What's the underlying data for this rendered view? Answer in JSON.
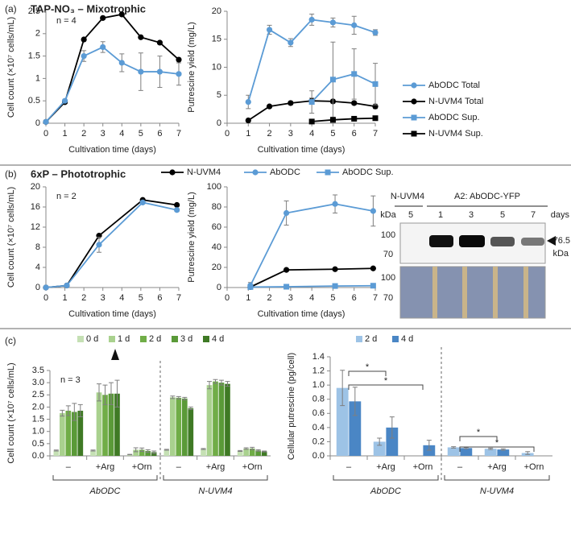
{
  "sections": [
    {
      "label": "(a)",
      "title": "TAP-NO₃ – Mixotrophic"
    },
    {
      "label": "(b)",
      "title": "6xP – Phototrophic"
    },
    {
      "label": "(c)"
    }
  ],
  "chart_data": [
    {
      "type": "line",
      "ylabel": "Cell count (×10⁷ cells/mL)",
      "xlabel": "Cultivation time (days)",
      "annotation": "n = 4",
      "xlim": [
        0,
        7
      ],
      "xticks": [
        0,
        1,
        2,
        3,
        4,
        5,
        6,
        7
      ],
      "ylim": [
        0,
        2.5
      ],
      "yticks": [
        0,
        0.5,
        1,
        1.5,
        2,
        2.5
      ],
      "series": [
        {
          "color": "#000000",
          "marker": "circle",
          "x": [
            0,
            1,
            2,
            3,
            4,
            5,
            6,
            7
          ],
          "values": [
            0.03,
            0.47,
            1.87,
            2.35,
            2.43,
            1.92,
            1.8,
            1.42
          ]
        },
        {
          "color": "#5b9bd5",
          "marker": "circle",
          "x": [
            0,
            1,
            2,
            3,
            4,
            5,
            6,
            7
          ],
          "values": [
            0.03,
            0.5,
            1.5,
            1.7,
            1.35,
            1.15,
            1.15,
            1.1
          ],
          "errors": [
            0,
            0.03,
            0.12,
            0.12,
            0.2,
            0.42,
            0.35,
            0.25
          ]
        }
      ]
    },
    {
      "type": "line",
      "ylabel": "Putrescine yield (mg/L)",
      "xlabel": "Cultivation time (days)",
      "legend": "right",
      "xlim": [
        0,
        7
      ],
      "xticks": [
        0,
        1,
        2,
        3,
        4,
        5,
        6,
        7
      ],
      "ylim": [
        0,
        20
      ],
      "yticks": [
        0,
        5,
        10,
        15,
        20
      ],
      "series": [
        {
          "name": "AbODC Total",
          "color": "#5b9bd5",
          "marker": "circle",
          "x": [
            1,
            2,
            3,
            4,
            5,
            6,
            7
          ],
          "values": [
            3.8,
            16.7,
            14.4,
            18.5,
            18.0,
            17.5,
            16.2
          ],
          "errors": [
            1.2,
            0.8,
            0.7,
            1.0,
            0.8,
            1.6,
            0.5
          ]
        },
        {
          "name": "N-UVM4 Total",
          "color": "#000000",
          "marker": "circle",
          "x": [
            1,
            2,
            3,
            4,
            5,
            6,
            7
          ],
          "values": [
            0.5,
            3.0,
            3.6,
            4.0,
            3.9,
            3.6,
            3.0
          ],
          "errors": [
            0.1,
            0.2,
            0.3,
            0.5,
            0.3,
            0.3,
            0.4
          ]
        },
        {
          "name": "AbODC Sup.",
          "color": "#5b9bd5",
          "marker": "square",
          "x": [
            4,
            5,
            6,
            7
          ],
          "values": [
            3.8,
            7.8,
            8.8,
            7.0
          ],
          "errors": [
            2.0,
            6.7,
            4.5,
            3.7
          ]
        },
        {
          "name": "N-UVM4 Sup.",
          "color": "#000000",
          "marker": "square",
          "x": [
            4,
            5,
            6,
            7
          ],
          "values": [
            0.3,
            0.6,
            0.8,
            0.9
          ]
        }
      ]
    },
    {
      "type": "line",
      "ylabel": "Cell count (×10⁷ cells/mL)",
      "xlabel": "Cultivation time (days)",
      "annotation": "n = 2",
      "xlim": [
        0,
        7
      ],
      "xticks": [
        0,
        1,
        2,
        3,
        4,
        5,
        6,
        7
      ],
      "ylim": [
        0,
        20
      ],
      "yticks": [
        0,
        4,
        8,
        12,
        16,
        20
      ],
      "series": [
        {
          "color": "#000000",
          "marker": "circle",
          "x": [
            0,
            1.1,
            2.8,
            5.1,
            6.9
          ],
          "values": [
            0,
            0.4,
            10.3,
            17.4,
            16.4
          ]
        },
        {
          "color": "#5b9bd5",
          "marker": "circle",
          "x": [
            0,
            1.1,
            2.8,
            5.1,
            6.9
          ],
          "values": [
            0,
            0.4,
            8.5,
            16.9,
            15.4
          ],
          "errors": [
            0,
            0.1,
            1.5,
            0.3,
            0.3
          ]
        }
      ]
    },
    {
      "type": "line",
      "ylabel": "Putrescine yield (mg/L)",
      "xlabel": "Cultivation time (days)",
      "legend": "top",
      "xlim": [
        0,
        7
      ],
      "xticks": [
        0,
        1,
        2,
        3,
        4,
        5,
        6,
        7
      ],
      "ylim": [
        0,
        100
      ],
      "yticks": [
        0,
        20,
        40,
        60,
        80,
        100
      ],
      "series": [
        {
          "name": "N-UVM4",
          "color": "#000000",
          "marker": "circle",
          "x": [
            1.1,
            2.8,
            5.1,
            6.9
          ],
          "values": [
            0.5,
            17.5,
            18.2,
            19.0
          ]
        },
        {
          "name": "AbODC",
          "color": "#5b9bd5",
          "marker": "circle",
          "x": [
            1.1,
            2.8,
            5.1,
            6.9
          ],
          "values": [
            2.0,
            74,
            83,
            76
          ],
          "errors": [
            3,
            12,
            9,
            15
          ]
        },
        {
          "name": "AbODC Sup.",
          "color": "#5b9bd5",
          "marker": "square",
          "x": [
            1.1,
            2.8,
            5.1,
            6.9
          ],
          "values": [
            0.5,
            0.8,
            1.5,
            1.8
          ]
        }
      ]
    },
    {
      "type": "bar",
      "ylabel": "Cell count (×10⁷ cells/mL)",
      "annotation": "n = 3",
      "legend": "top",
      "categories": [
        "–",
        "+Arg",
        "+Orn",
        "–",
        "+Arg",
        "+Orn"
      ],
      "groups": [
        "AbODC",
        "N-UVM4"
      ],
      "ylim": [
        0,
        3.5
      ],
      "yticks": [
        {
          "value": 0,
          "label": "0.0"
        },
        0.5,
        {
          "value": 1,
          "label": "1.0"
        },
        1.5,
        {
          "value": 2,
          "label": "2.0"
        },
        2.5,
        {
          "value": 3,
          "label": "3.0"
        },
        3.5
      ],
      "series": [
        {
          "name": "0 d",
          "color": "#c5e0b4",
          "values": [
            0.22,
            0.22,
            0.05,
            0.25,
            0.28,
            0.2
          ],
          "errors": [
            0.02,
            0.02,
            0.01,
            0.02,
            0.02,
            0.02
          ]
        },
        {
          "name": "1 d",
          "color": "#a9d18e",
          "values": [
            1.75,
            2.6,
            0.25,
            2.4,
            2.9,
            0.3
          ],
          "errors": [
            0.12,
            0.35,
            0.08,
            0.05,
            0.15,
            0.03
          ]
        },
        {
          "name": "2 d",
          "color": "#70ad47",
          "values": [
            1.85,
            2.5,
            0.25,
            2.38,
            3.05,
            0.3
          ],
          "errors": [
            0.2,
            0.4,
            0.07,
            0.05,
            0.08,
            0.05
          ]
        },
        {
          "name": "3 d",
          "color": "#5a9a38",
          "values": [
            1.8,
            2.55,
            0.2,
            2.35,
            3.0,
            0.22
          ],
          "errors": [
            0.35,
            0.45,
            0.05,
            0.05,
            0.1,
            0.03
          ]
        },
        {
          "name": "4 d",
          "color": "#3f7a25",
          "values": [
            1.85,
            2.55,
            0.15,
            1.95,
            2.95,
            0.18
          ],
          "errors": [
            0.25,
            0.55,
            0.05,
            0.05,
            0.1,
            0.02
          ]
        }
      ]
    },
    {
      "type": "bar",
      "ylabel": "Cellular putrescine (pg/cell)",
      "legend": "top",
      "categories": [
        "–",
        "+Arg",
        "+Orn",
        "–",
        "+Arg",
        "+Orn"
      ],
      "groups": [
        "AbODC",
        "N-UVM4"
      ],
      "ylim": [
        0,
        1.4
      ],
      "yticks": [
        {
          "value": 0,
          "label": "0.0"
        },
        0.2,
        0.4,
        0.6,
        0.8,
        {
          "value": 1,
          "label": "1.0"
        },
        1.2,
        1.4
      ],
      "significance": [
        "*",
        "*",
        "*",
        "*"
      ],
      "series": [
        {
          "name": "2 d",
          "color": "#9dc3e6",
          "values": [
            0.96,
            0.2,
            null,
            0.12,
            0.1,
            0.04
          ],
          "errors": [
            0.25,
            0.05,
            null,
            0.01,
            0.01,
            0.02
          ]
        },
        {
          "name": "4 d",
          "color": "#4a86c5",
          "values": [
            0.77,
            0.4,
            0.15,
            0.11,
            0.09,
            null
          ],
          "errors": [
            0.2,
            0.15,
            0.07,
            0.01,
            0.01,
            null
          ]
        }
      ]
    }
  ],
  "blot": {
    "header": [
      "N-UVM4",
      "A2: AbODC-YFP"
    ],
    "unit": "kDa",
    "lanes": [
      "5",
      "1",
      "3",
      "5",
      "7"
    ],
    "days": "days",
    "markers": [
      "100",
      "70",
      "100",
      "70"
    ],
    "band": "76.5",
    "band_unit": "kDa"
  }
}
